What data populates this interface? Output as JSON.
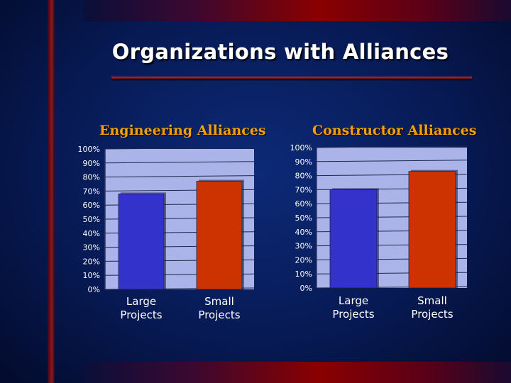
{
  "title": "Organizations with Alliances",
  "chart_data": [
    {
      "type": "bar",
      "title": "Engineering Alliances",
      "categories": [
        "Large Projects",
        "Small Projects"
      ],
      "category_lines": [
        [
          "Large",
          "Projects"
        ],
        [
          "Small",
          "Projects"
        ]
      ],
      "values": [
        68,
        77
      ],
      "bar_colors": [
        "#3333cc",
        "#cc3300"
      ],
      "ylim": [
        0,
        100
      ],
      "yticks": [
        0,
        10,
        20,
        30,
        40,
        50,
        60,
        70,
        80,
        90,
        100
      ],
      "ytick_labels": [
        "0%",
        "10%",
        "20%",
        "30%",
        "40%",
        "50%",
        "60%",
        "70%",
        "80%",
        "90%",
        "100%"
      ],
      "grid": true,
      "plot_bg": "#aab4e8"
    },
    {
      "type": "bar",
      "title": "Constructor Alliances",
      "categories": [
        "Large Projects",
        "Small Projects"
      ],
      "category_lines": [
        [
          "Large",
          "Projects"
        ],
        [
          "Small",
          "Projects"
        ]
      ],
      "values": [
        70,
        83
      ],
      "bar_colors": [
        "#3333cc",
        "#cc3300"
      ],
      "ylim": [
        0,
        100
      ],
      "yticks": [
        0,
        10,
        20,
        30,
        40,
        50,
        60,
        70,
        80,
        90,
        100
      ],
      "ytick_labels": [
        "0%",
        "10%",
        "20%",
        "30%",
        "40%",
        "50%",
        "60%",
        "70%",
        "80%",
        "90%",
        "100%"
      ],
      "grid": true,
      "plot_bg": "#aab4e8"
    }
  ]
}
